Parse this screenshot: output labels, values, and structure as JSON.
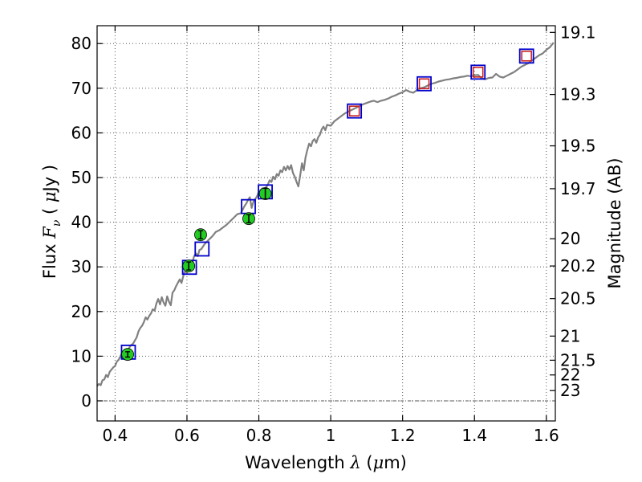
{
  "chart_data": {
    "type": "scatter",
    "x_axis": {
      "label_parts": [
        "Wavelength  ",
        "λ",
        " (",
        "μ",
        "m)"
      ],
      "range": [
        0.35,
        1.625
      ],
      "ticks": [
        0.4,
        0.6,
        0.8,
        1.0,
        1.2,
        1.4,
        1.6
      ],
      "tick_labels": [
        "0.4",
        "0.6",
        "0.8",
        "1",
        "1.2",
        "1.4",
        "1.6"
      ]
    },
    "y_axis": {
      "label_parts": [
        "Flux  ",
        "F",
        "ν",
        "  ( ",
        "μ",
        "Jy )"
      ],
      "range": [
        -4.5,
        84
      ],
      "ticks": [
        0,
        10,
        20,
        30,
        40,
        50,
        60,
        70,
        80
      ],
      "tick_labels": [
        "0",
        "10",
        "20",
        "30",
        "40",
        "50",
        "60",
        "70",
        "80"
      ]
    },
    "y2_axis": {
      "label": "Magnitude (AB)",
      "ticks": [
        {
          "label": "19.1",
          "flux": 82.5
        },
        {
          "label": "19.3",
          "flux": 68.6
        },
        {
          "label": "19.5",
          "flux": 57.1
        },
        {
          "label": "19.7",
          "flux": 47.5
        },
        {
          "label": "20",
          "flux": 36.3
        },
        {
          "label": "20.2",
          "flux": 30.2
        },
        {
          "label": "20.5",
          "flux": 22.9
        },
        {
          "label": "21",
          "flux": 14.5
        },
        {
          "label": "21.5",
          "flux": 9.1
        },
        {
          "label": "22",
          "flux": 5.8
        },
        {
          "label": "23",
          "flux": 2.3
        }
      ]
    },
    "grid": true,
    "zero_line": true,
    "colors": {
      "sed": "#808080",
      "observed": "#22cc22",
      "model_box": "#0000cc",
      "model_red": "#cc2222",
      "grid": "#555555"
    },
    "sed_curve": [
      [
        0.35,
        3.3
      ],
      [
        0.355,
        3.8
      ],
      [
        0.36,
        3.5
      ],
      [
        0.365,
        4.6
      ],
      [
        0.37,
        4.8
      ],
      [
        0.375,
        5.8
      ],
      [
        0.38,
        5.3
      ],
      [
        0.385,
        6.5
      ],
      [
        0.39,
        7.0
      ],
      [
        0.395,
        7.5
      ],
      [
        0.4,
        7.8
      ],
      [
        0.405,
        8.8
      ],
      [
        0.41,
        9.2
      ],
      [
        0.415,
        10.0
      ],
      [
        0.42,
        10.8
      ],
      [
        0.425,
        10.6
      ],
      [
        0.43,
        11.2
      ],
      [
        0.435,
        11.0
      ],
      [
        0.44,
        12.0
      ],
      [
        0.445,
        12.5
      ],
      [
        0.45,
        12.8
      ],
      [
        0.455,
        13.5
      ],
      [
        0.46,
        14.2
      ],
      [
        0.465,
        15.5
      ],
      [
        0.47,
        16.3
      ],
      [
        0.475,
        16.8
      ],
      [
        0.48,
        17.6
      ],
      [
        0.485,
        18.7
      ],
      [
        0.49,
        18.2
      ],
      [
        0.495,
        19.0
      ],
      [
        0.5,
        19.6
      ],
      [
        0.505,
        20.5
      ],
      [
        0.51,
        20.2
      ],
      [
        0.515,
        21.8
      ],
      [
        0.52,
        22.8
      ],
      [
        0.525,
        21.6
      ],
      [
        0.53,
        23.2
      ],
      [
        0.535,
        22.0
      ],
      [
        0.54,
        21.3
      ],
      [
        0.545,
        23.4
      ],
      [
        0.55,
        22.2
      ],
      [
        0.555,
        21.4
      ],
      [
        0.56,
        24.2
      ],
      [
        0.565,
        24.8
      ],
      [
        0.57,
        25.7
      ],
      [
        0.575,
        26.5
      ],
      [
        0.58,
        27.2
      ],
      [
        0.585,
        26.4
      ],
      [
        0.59,
        28.0
      ],
      [
        0.595,
        29.2
      ],
      [
        0.6,
        28.6
      ],
      [
        0.605,
        30.0
      ],
      [
        0.61,
        31.4
      ],
      [
        0.615,
        31.0
      ],
      [
        0.62,
        32.4
      ],
      [
        0.625,
        33.0
      ],
      [
        0.63,
        32.4
      ],
      [
        0.635,
        33.8
      ],
      [
        0.64,
        34.0
      ],
      [
        0.645,
        34.6
      ],
      [
        0.65,
        35.2
      ],
      [
        0.66,
        36.0
      ],
      [
        0.67,
        36.8
      ],
      [
        0.68,
        37.8
      ],
      [
        0.69,
        38.2
      ],
      [
        0.7,
        38.8
      ],
      [
        0.71,
        39.4
      ],
      [
        0.72,
        40.2
      ],
      [
        0.73,
        41.0
      ],
      [
        0.74,
        41.8
      ],
      [
        0.75,
        42.0
      ],
      [
        0.755,
        42.8
      ],
      [
        0.76,
        43.6
      ],
      [
        0.765,
        44.2
      ],
      [
        0.77,
        45.0
      ],
      [
        0.775,
        45.6
      ],
      [
        0.78,
        43.2
      ],
      [
        0.785,
        44.6
      ],
      [
        0.79,
        45.2
      ],
      [
        0.795,
        45.8
      ],
      [
        0.8,
        46.8
      ],
      [
        0.81,
        47.6
      ],
      [
        0.815,
        46.0
      ],
      [
        0.82,
        47.8
      ],
      [
        0.825,
        48.4
      ],
      [
        0.83,
        49.4
      ],
      [
        0.835,
        49.0
      ],
      [
        0.84,
        50.2
      ],
      [
        0.845,
        49.6
      ],
      [
        0.85,
        50.8
      ],
      [
        0.855,
        50.4
      ],
      [
        0.86,
        51.6
      ],
      [
        0.865,
        51.2
      ],
      [
        0.87,
        52.4
      ],
      [
        0.875,
        51.6
      ],
      [
        0.88,
        52.6
      ],
      [
        0.885,
        51.8
      ],
      [
        0.89,
        52.8
      ],
      [
        0.895,
        51.0
      ],
      [
        0.9,
        50.2
      ],
      [
        0.905,
        49.0
      ],
      [
        0.91,
        48.0
      ],
      [
        0.915,
        50.4
      ],
      [
        0.92,
        53.2
      ],
      [
        0.925,
        51.6
      ],
      [
        0.93,
        54.5
      ],
      [
        0.935,
        56.2
      ],
      [
        0.94,
        57.6
      ],
      [
        0.945,
        57.0
      ],
      [
        0.95,
        58.2
      ],
      [
        0.955,
        58.6
      ],
      [
        0.96,
        57.8
      ],
      [
        0.965,
        59.0
      ],
      [
        0.97,
        59.6
      ],
      [
        0.975,
        60.8
      ],
      [
        0.98,
        61.4
      ],
      [
        0.985,
        60.6
      ],
      [
        0.99,
        61.8
      ],
      [
        1.0,
        61.6
      ],
      [
        1.01,
        62.6
      ],
      [
        1.02,
        63.2
      ],
      [
        1.03,
        63.8
      ],
      [
        1.04,
        64.4
      ],
      [
        1.05,
        64.8
      ],
      [
        1.06,
        65.2
      ],
      [
        1.07,
        65.6
      ],
      [
        1.08,
        66.0
      ],
      [
        1.09,
        66.4
      ],
      [
        1.1,
        66.7
      ],
      [
        1.11,
        67.0
      ],
      [
        1.12,
        67.2
      ],
      [
        1.13,
        66.9
      ],
      [
        1.14,
        67.2
      ],
      [
        1.15,
        67.4
      ],
      [
        1.16,
        67.7
      ],
      [
        1.17,
        68.1
      ],
      [
        1.18,
        68.4
      ],
      [
        1.19,
        68.8
      ],
      [
        1.2,
        69.1
      ],
      [
        1.21,
        69.6
      ],
      [
        1.22,
        69.2
      ],
      [
        1.23,
        69.0
      ],
      [
        1.24,
        69.6
      ],
      [
        1.25,
        70.0
      ],
      [
        1.26,
        70.2
      ],
      [
        1.27,
        70.6
      ],
      [
        1.28,
        71.0
      ],
      [
        1.29,
        71.2
      ],
      [
        1.3,
        71.5
      ],
      [
        1.31,
        71.7
      ],
      [
        1.32,
        71.9
      ],
      [
        1.33,
        72.0
      ],
      [
        1.34,
        72.2
      ],
      [
        1.35,
        72.3
      ],
      [
        1.36,
        72.5
      ],
      [
        1.37,
        72.6
      ],
      [
        1.38,
        72.8
      ],
      [
        1.39,
        72.7
      ],
      [
        1.4,
        72.9
      ],
      [
        1.41,
        73.0
      ],
      [
        1.42,
        72.2
      ],
      [
        1.43,
        72.0
      ],
      [
        1.44,
        72.3
      ],
      [
        1.45,
        72.4
      ],
      [
        1.46,
        73.2
      ],
      [
        1.47,
        72.6
      ],
      [
        1.48,
        72.4
      ],
      [
        1.49,
        72.8
      ],
      [
        1.5,
        73.2
      ],
      [
        1.51,
        73.6
      ],
      [
        1.52,
        74.2
      ],
      [
        1.53,
        74.8
      ],
      [
        1.54,
        75.2
      ],
      [
        1.55,
        75.6
      ],
      [
        1.56,
        76.2
      ],
      [
        1.57,
        76.8
      ],
      [
        1.58,
        77.4
      ],
      [
        1.59,
        77.8
      ],
      [
        1.6,
        78.6
      ],
      [
        1.61,
        79.2
      ],
      [
        1.62,
        80.2
      ]
    ],
    "observed": [
      {
        "x": 0.435,
        "y": 10.4,
        "err": 0.6
      },
      {
        "x": 0.605,
        "y": 30.2,
        "err": 0.9
      },
      {
        "x": 0.638,
        "y": 37.2,
        "err": 0.9
      },
      {
        "x": 0.772,
        "y": 40.8,
        "err": 0.9
      },
      {
        "x": 0.818,
        "y": 46.4,
        "err": 1.2
      }
    ],
    "model_points": [
      {
        "x": 0.437,
        "y": 10.9,
        "red": false
      },
      {
        "x": 0.607,
        "y": 29.9,
        "red": false
      },
      {
        "x": 0.642,
        "y": 34.0,
        "red": false
      },
      {
        "x": 0.771,
        "y": 43.5,
        "red": false
      },
      {
        "x": 0.818,
        "y": 46.8,
        "red": false
      },
      {
        "x": 1.066,
        "y": 64.9,
        "red": true
      },
      {
        "x": 1.26,
        "y": 71.0,
        "red": true
      },
      {
        "x": 1.41,
        "y": 73.6,
        "red": true
      },
      {
        "x": 1.545,
        "y": 77.2,
        "red": true
      }
    ]
  }
}
